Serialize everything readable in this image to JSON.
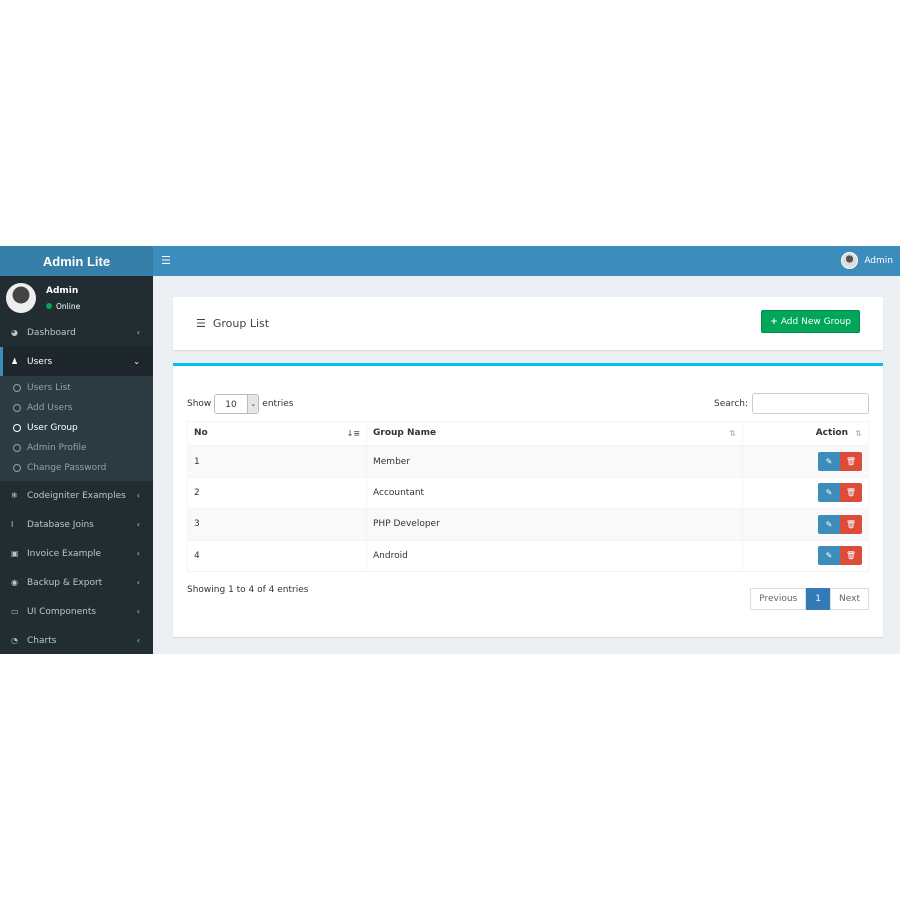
{
  "app": {
    "title": "Admin Lite",
    "user": "Admin"
  },
  "sidebar": {
    "user": {
      "name": "Admin",
      "status": "Online"
    },
    "items": [
      {
        "label": "Dashboard",
        "icon": "dashboard-icon"
      },
      {
        "label": "Users",
        "icon": "user-icon"
      },
      {
        "label": "Codeigniter Examples",
        "icon": "snowflake-icon"
      },
      {
        "label": "Database Joins",
        "icon": "i-cursor-icon"
      },
      {
        "label": "Invoice Example",
        "icon": "money-icon"
      },
      {
        "label": "Backup & Export",
        "icon": "life-ring-icon"
      },
      {
        "label": "UI Components",
        "icon": "laptop-icon"
      },
      {
        "label": "Charts",
        "icon": "pie-chart-icon"
      }
    ],
    "sub": [
      "Users List",
      "Add Users",
      "User Group",
      "Admin Profile",
      "Change Password"
    ]
  },
  "page": {
    "title": "Group List",
    "add_label": "Add New Group"
  },
  "table": {
    "show": "Show",
    "length": "10",
    "entries": "entries",
    "search": "Search:",
    "headers": [
      "No",
      "Group Name",
      "Action"
    ],
    "rows": [
      [
        "1",
        "Member"
      ],
      [
        "2",
        "Accountant"
      ],
      [
        "3",
        "PHP Developer"
      ],
      [
        "4",
        "Android"
      ]
    ],
    "info": "Showing 1 to 4 of 4 entries",
    "prev": "Previous",
    "page": "1",
    "next": "Next"
  },
  "colors": {
    "navbar": "#3c8dbc",
    "sidebar": "#222d32",
    "add": "#00a65a",
    "delete": "#dd4b39",
    "accent": "#00c0ef"
  }
}
